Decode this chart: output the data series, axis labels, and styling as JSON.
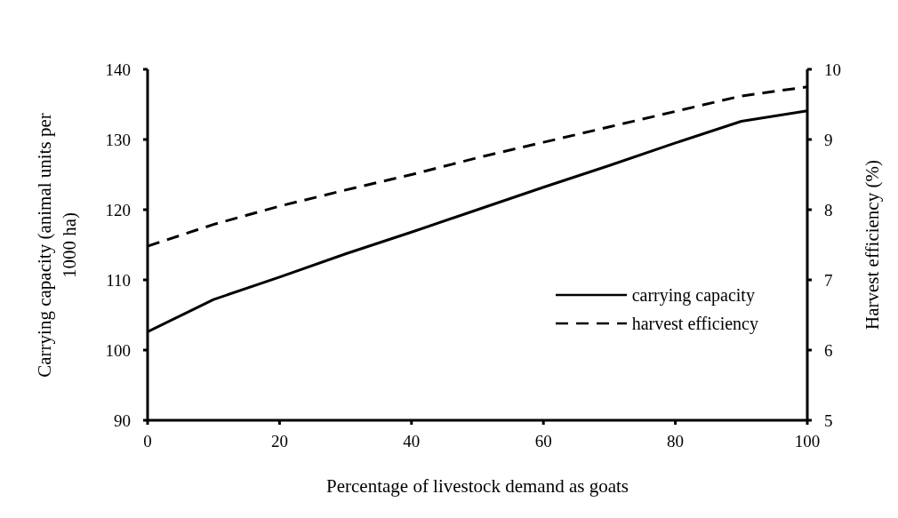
{
  "chart_data": {
    "type": "line",
    "xlabel": "Percentage of livestock demand as goats",
    "ylabel": "Carrying capacity (animal units per 1000 ha)",
    "y2label": "Harvest efficiency (%)",
    "x": [
      0,
      10,
      20,
      30,
      40,
      50,
      60,
      70,
      80,
      90,
      100
    ],
    "series": [
      {
        "name": "carrying capacity",
        "color": "#000000",
        "line_style": "solid",
        "values": [
          102.6,
          107.2,
          110.4,
          113.7,
          116.8,
          120.0,
          123.2,
          126.3,
          129.5,
          132.6,
          134.1
        ]
      },
      {
        "name": "harvest efficiency",
        "color": "#000000",
        "line_style": "dashed",
        "axis": "y2",
        "values": [
          7.48,
          7.79,
          8.05,
          8.28,
          8.5,
          8.74,
          8.96,
          9.18,
          9.4,
          9.62,
          9.75
        ]
      }
    ],
    "xlim": [
      0,
      100
    ],
    "xticks": [
      0,
      20,
      40,
      60,
      80,
      100
    ],
    "ylim": [
      90,
      140
    ],
    "yticks": [
      90,
      100,
      110,
      120,
      130,
      140
    ],
    "y2lim": [
      5,
      10
    ],
    "y2ticks": [
      5,
      6,
      7,
      8,
      9,
      10
    ],
    "grid": false,
    "legend": "right",
    "marker": "none"
  }
}
